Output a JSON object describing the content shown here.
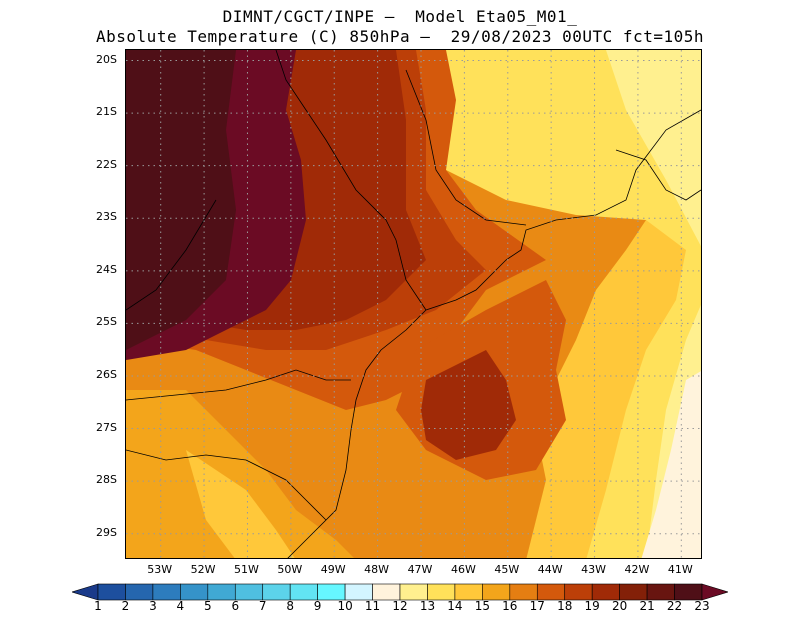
{
  "title": {
    "line1": "DIMNT/CGCT/INPE –  Model Eta05_M01_",
    "line2": "Absolute Temperature (C) 850hPa –  29/08/2023 00UTC fct=105h"
  },
  "map": {
    "lat_labels": [
      "20S",
      "21S",
      "22S",
      "23S",
      "24S",
      "25S",
      "26S",
      "27S",
      "28S",
      "29S"
    ],
    "lon_labels": [
      "53W",
      "52W",
      "51W",
      "50W",
      "49W",
      "48W",
      "47W",
      "46W",
      "45W",
      "44W",
      "43W",
      "42W",
      "41W"
    ],
    "lat_range": [
      -29.5,
      -19.8
    ],
    "lon_range": [
      -53.8,
      -40.5
    ],
    "gridlines": "dotted"
  },
  "colorbar": {
    "labels": [
      "1",
      "2",
      "3",
      "4",
      "5",
      "6",
      "7",
      "8",
      "9",
      "10",
      "11",
      "12",
      "13",
      "14",
      "15",
      "16",
      "17",
      "18",
      "19",
      "20",
      "21",
      "22",
      "23"
    ],
    "colors": [
      "#1a3a8a",
      "#1d4f9e",
      "#2566ae",
      "#2d7cbd",
      "#3593c9",
      "#40a9d4",
      "#4fbfe0",
      "#5cd3ea",
      "#62e4f3",
      "#66f7ff",
      "#d3f5ff",
      "#fff3dc",
      "#fff08f",
      "#ffe15a",
      "#ffc83a",
      "#f3a51b",
      "#e57e12",
      "#d4590c",
      "#bc3f08",
      "#a02a07",
      "#832008",
      "#681510",
      "#4f0f17",
      "#6b0b24"
    ]
  }
}
